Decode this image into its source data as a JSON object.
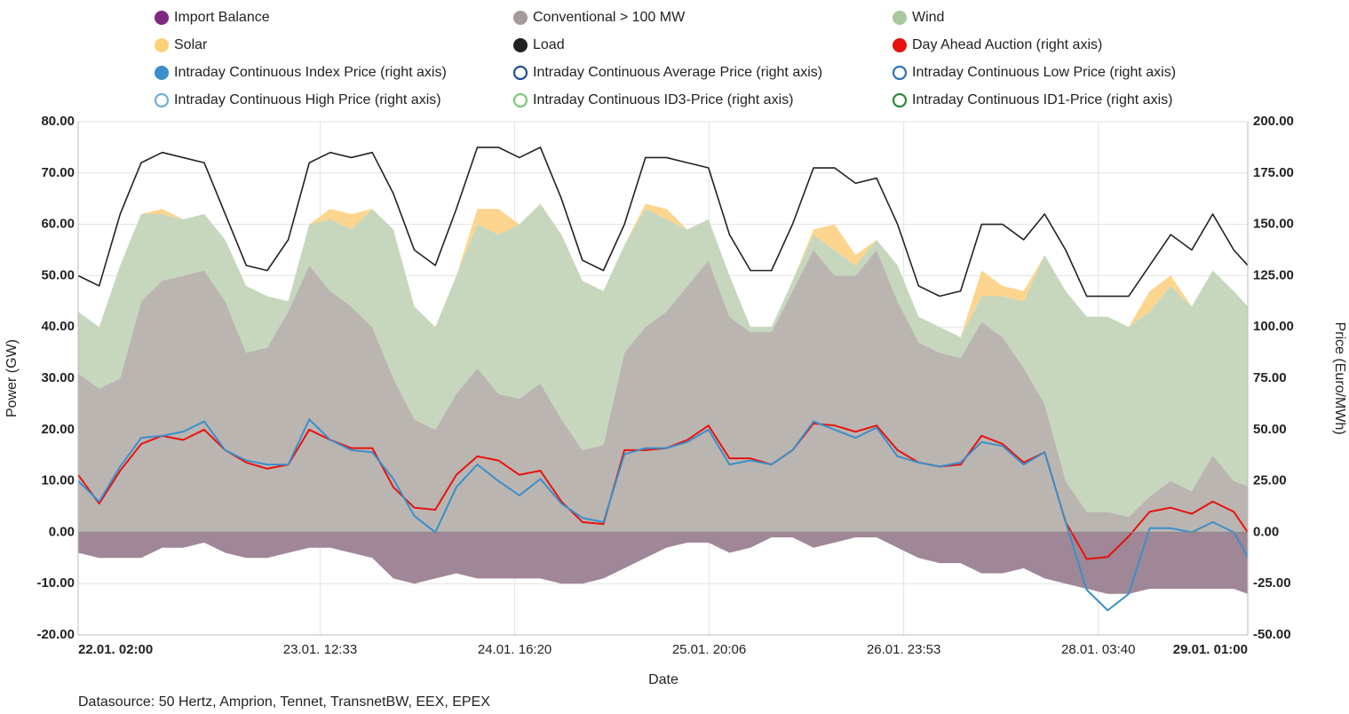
{
  "chart_data": {
    "type": "area",
    "xlabel": "Date",
    "ylabel": "Power (GW)",
    "y2label": "Price (Euro/MWh)",
    "source": "Datasource: 50 Hertz, Amprion, Tennet, TransnetBW, EEX, EPEX",
    "grid": true,
    "x": [
      "22.01. 02:00",
      "22.01. 05:00",
      "22.01. 08:00",
      "22.01. 11:00",
      "22.01. 14:00",
      "22.01. 17:00",
      "22.01. 20:00",
      "22.01. 23:00",
      "23.01. 02:00",
      "23.01. 05:00",
      "23.01. 08:00",
      "23.01. 11:00",
      "23.01. 14:00",
      "23.01. 17:00",
      "23.01. 20:00",
      "23.01. 23:00",
      "24.01. 02:00",
      "24.01. 05:00",
      "24.01. 08:00",
      "24.01. 11:00",
      "24.01. 14:00",
      "24.01. 17:00",
      "24.01. 20:00",
      "24.01. 23:00",
      "25.01. 02:00",
      "25.01. 05:00",
      "25.01. 08:00",
      "25.01. 11:00",
      "25.01. 14:00",
      "25.01. 17:00",
      "25.01. 20:00",
      "25.01. 23:00",
      "26.01. 02:00",
      "26.01. 05:00",
      "26.01. 08:00",
      "26.01. 11:00",
      "26.01. 14:00",
      "26.01. 17:00",
      "26.01. 20:00",
      "26.01. 23:00",
      "27.01. 02:00",
      "27.01. 05:00",
      "27.01. 08:00",
      "27.01. 11:00",
      "27.01. 14:00",
      "27.01. 17:00",
      "27.01. 20:00",
      "27.01. 23:00",
      "28.01. 02:00",
      "28.01. 05:00",
      "28.01. 08:00",
      "28.01. 11:00",
      "28.01. 14:00",
      "28.01. 17:00",
      "28.01. 20:00",
      "28.01. 23:00",
      "29.01. 01:00"
    ],
    "xlim": [
      "22.01. 02:00",
      "29.01. 01:00"
    ],
    "xticks": [
      "22.01. 02:00",
      "23.01. 12:33",
      "24.01. 16:20",
      "25.01. 20:06",
      "26.01. 23:53",
      "28.01. 03:40",
      "29.01. 01:00"
    ],
    "ylim": [
      -20,
      80
    ],
    "yticks": [
      {
        "value": -20,
        "label": "-20.00"
      },
      {
        "value": -10,
        "label": "-10.00"
      },
      {
        "value": 0,
        "label": "0.00"
      },
      {
        "value": 10,
        "label": "10.00"
      },
      {
        "value": 20,
        "label": "20.00"
      },
      {
        "value": 30,
        "label": "30.00"
      },
      {
        "value": 40,
        "label": "40.00"
      },
      {
        "value": 50,
        "label": "50.00"
      },
      {
        "value": 60,
        "label": "60.00"
      },
      {
        "value": 70,
        "label": "70.00"
      },
      {
        "value": 80,
        "label": "80.00"
      }
    ],
    "y2lim": [
      -50,
      200
    ],
    "y2ticks": [
      {
        "value": -50,
        "label": "-50.00"
      },
      {
        "value": -25,
        "label": "-25.00"
      },
      {
        "value": 0,
        "label": "0.00"
      },
      {
        "value": 25,
        "label": "25.00"
      },
      {
        "value": 50,
        "label": "50.00"
      },
      {
        "value": 75,
        "label": "75.00"
      },
      {
        "value": 100,
        "label": "100.00"
      },
      {
        "value": 125,
        "label": "125.00"
      },
      {
        "value": 150,
        "label": "150.00"
      },
      {
        "value": 175,
        "label": "175.00"
      },
      {
        "value": 200,
        "label": "200.00"
      }
    ],
    "series": [
      {
        "name": "Import Balance",
        "color": "#7e2a80",
        "fill": "#a08797",
        "type": "area",
        "marker": "filled",
        "values": [
          -4,
          -5,
          -5,
          -5,
          -3,
          -3,
          -2,
          -4,
          -5,
          -5,
          -4,
          -3,
          -3,
          -4,
          -5,
          -9,
          -10,
          -9,
          -8,
          -9,
          -9,
          -9,
          -9,
          -10,
          -10,
          -9,
          -7,
          -5,
          -3,
          -2,
          -2,
          -4,
          -3,
          -1,
          -1,
          -3,
          -2,
          -1,
          -1,
          -3,
          -5,
          -6,
          -6,
          -8,
          -8,
          -7,
          -9,
          -10,
          -11,
          -12,
          -12,
          -11,
          -11,
          -11,
          -11,
          -11,
          -12
        ]
      },
      {
        "name": "Conventional > 100 MW",
        "color": "#a39c99",
        "fill": "#bbb5b2",
        "type": "area",
        "marker": "filled",
        "values": [
          31,
          28,
          30,
          45,
          49,
          50,
          51,
          45,
          35,
          36,
          43,
          52,
          47,
          44,
          40,
          30,
          22,
          20,
          27,
          32,
          27,
          26,
          29,
          22,
          16,
          17,
          35,
          40,
          43,
          48,
          53,
          42,
          39,
          39,
          47,
          55,
          50,
          50,
          55,
          45,
          37,
          35,
          34,
          41,
          38,
          32,
          25,
          10,
          4,
          4,
          3,
          7,
          10,
          8,
          15,
          10,
          9
        ]
      },
      {
        "name": "Wind",
        "color": "#a9c79f",
        "fill": "#c6d7be",
        "type": "area",
        "marker": "filled",
        "values": [
          12,
          12,
          22,
          17,
          13,
          11,
          11,
          12,
          13,
          10,
          2,
          8,
          14,
          15,
          23,
          29,
          22,
          20,
          23,
          28,
          31,
          34,
          35,
          36,
          33,
          30,
          21,
          23,
          18,
          11,
          8,
          8,
          1,
          1,
          2,
          3,
          5,
          2,
          2,
          7,
          5,
          5,
          4,
          5,
          8,
          13,
          29,
          37,
          38,
          38,
          37,
          36,
          38,
          36,
          36,
          37,
          35
        ]
      },
      {
        "name": "Solar",
        "color": "#fdd07a",
        "fill": "#fdd58e",
        "type": "area",
        "marker": "filled",
        "values": [
          0,
          0,
          0,
          0,
          1,
          0,
          0,
          0,
          0,
          0,
          0,
          0,
          2,
          3,
          0,
          0,
          0,
          0,
          0,
          3,
          5,
          0,
          0,
          0,
          0,
          0,
          0,
          1,
          2,
          0,
          0,
          0,
          0,
          0,
          0,
          1,
          5,
          2,
          0,
          0,
          0,
          0,
          0,
          5,
          2,
          2,
          0,
          0,
          0,
          0,
          0,
          4,
          2,
          0,
          0,
          0,
          0
        ]
      },
      {
        "name": "Load",
        "color": "#222222",
        "type": "line",
        "marker": "filled",
        "values": [
          50,
          48,
          62,
          72,
          74,
          73,
          72,
          62,
          52,
          51,
          57,
          72,
          74,
          73,
          74,
          66,
          55,
          52,
          63,
          75,
          75,
          73,
          75,
          65,
          53,
          51,
          60,
          73,
          73,
          72,
          71,
          58,
          51,
          51,
          60,
          71,
          71,
          68,
          69,
          60,
          48,
          46,
          47,
          60,
          60,
          57,
          62,
          55,
          46,
          46,
          46,
          52,
          58,
          55,
          62,
          55,
          52
        ]
      },
      {
        "name": "Day Ahead Auction (right axis)",
        "color": "#e8120c",
        "type": "line",
        "axis": "y2",
        "marker": "filled",
        "values": [
          28,
          14,
          30,
          43,
          47,
          45,
          50,
          40,
          34,
          31,
          33,
          50,
          45,
          41,
          41,
          22,
          12,
          11,
          28,
          37,
          35,
          28,
          30,
          15,
          5,
          4,
          40,
          40,
          41,
          45,
          52,
          36,
          36,
          33,
          40,
          53,
          52,
          49,
          52,
          40,
          34,
          32,
          33,
          47,
          43,
          34,
          39,
          5,
          -13,
          -12,
          -2,
          10,
          12,
          9,
          15,
          10,
          0
        ]
      },
      {
        "name": "Intraday Continuous Index Price (right axis)",
        "color": "#3a8fc9",
        "type": "line",
        "axis": "y2",
        "marker": "filled",
        "values": [
          25,
          15,
          32,
          46,
          47,
          49,
          54,
          40,
          35,
          33,
          33,
          55,
          45,
          40,
          39,
          26,
          8,
          0,
          22,
          33,
          25,
          18,
          26,
          14,
          7,
          5,
          38,
          41,
          41,
          44,
          50,
          33,
          35,
          33,
          40,
          54,
          50,
          46,
          51,
          37,
          34,
          32,
          34,
          44,
          42,
          33,
          39,
          5,
          -28,
          -38,
          -30,
          2,
          2,
          0,
          5,
          0,
          -12
        ]
      },
      {
        "name": "Intraday Continuous Average Price (right axis)",
        "color": "#1f4e9a",
        "marker": "hollow"
      },
      {
        "name": "Intraday Continuous Low Price (right axis)",
        "color": "#2f72b8",
        "marker": "hollow"
      },
      {
        "name": "Intraday Continuous High Price (right axis)",
        "color": "#6fb0dc",
        "marker": "hollow"
      },
      {
        "name": "Intraday Continuous ID3-Price (right axis)",
        "color": "#7cc97c",
        "marker": "hollow"
      },
      {
        "name": "Intraday Continuous ID1-Price (right axis)",
        "color": "#2a8a3a",
        "marker": "hollow"
      }
    ]
  }
}
